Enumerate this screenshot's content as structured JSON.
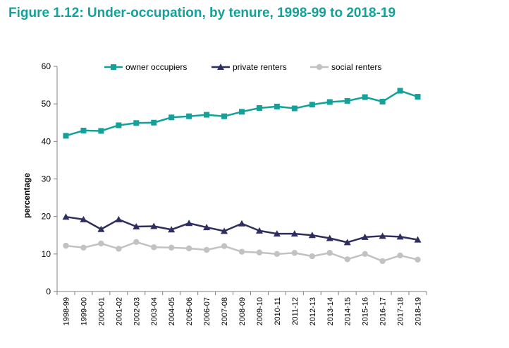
{
  "figure_title": "Figure 1.12: Under-occupation, by tenure, 1998-99 to 2018-19",
  "chart_data": {
    "type": "line",
    "title": "",
    "xlabel": "",
    "ylabel": "percentage",
    "ylim": [
      0,
      60
    ],
    "yticks": [
      0,
      10,
      20,
      30,
      40,
      50,
      60
    ],
    "grid": false,
    "legend_position": "top",
    "categories": [
      "1998-99",
      "1999-00",
      "2000-01",
      "2001-02",
      "2002-03",
      "2003-04",
      "2004-05",
      "2005-06",
      "2006-07",
      "2007-08",
      "2008-09",
      "2009-10",
      "2010-11",
      "2011-12",
      "2012-13",
      "2013-14",
      "2014-15",
      "2015-16",
      "2016-17",
      "2017-18",
      "2018-19"
    ],
    "series": [
      {
        "name": "owner occupiers",
        "color": "#13A19A",
        "marker": "square",
        "values": [
          41.5,
          42.9,
          42.8,
          44.3,
          44.9,
          45.0,
          46.4,
          46.7,
          47.1,
          46.7,
          47.9,
          48.9,
          49.3,
          48.8,
          49.8,
          50.5,
          50.8,
          51.8,
          50.6,
          53.5,
          51.9
        ]
      },
      {
        "name": "private renters",
        "color": "#2E2F5E",
        "marker": "triangle",
        "values": [
          19.9,
          19.2,
          16.6,
          19.2,
          17.3,
          17.4,
          16.5,
          18.2,
          17.1,
          16.1,
          18.1,
          16.2,
          15.4,
          15.4,
          15.0,
          14.2,
          13.1,
          14.5,
          14.8,
          14.6,
          13.8
        ]
      },
      {
        "name": "social renters",
        "color": "#C2C2C2",
        "marker": "circle",
        "values": [
          12.2,
          11.7,
          12.8,
          11.4,
          13.2,
          11.8,
          11.7,
          11.5,
          11.1,
          12.1,
          10.6,
          10.4,
          10.0,
          10.3,
          9.4,
          10.3,
          8.6,
          10.0,
          8.1,
          9.6,
          8.5
        ]
      }
    ]
  }
}
